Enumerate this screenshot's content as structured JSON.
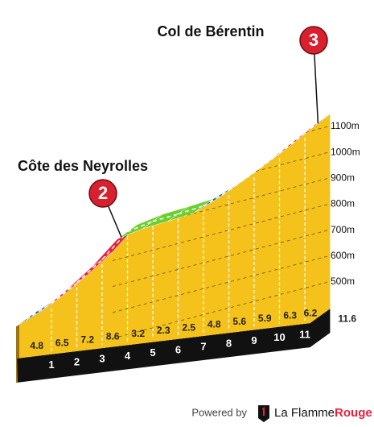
{
  "chart_data": {
    "type": "profile",
    "climbs": [
      {
        "name": "Côte des Neyrolles",
        "number": "2"
      },
      {
        "name": "Col de Bérentin",
        "number": "3"
      }
    ],
    "xticks": [
      1,
      2,
      3,
      4,
      5,
      6,
      7,
      8,
      9,
      10,
      11
    ],
    "distance_total": 11.6,
    "gradients": [
      4.8,
      6.5,
      7.2,
      8.6,
      3.2,
      2.3,
      2.5,
      4.8,
      5.6,
      5.9,
      6.3,
      6.2
    ],
    "colors": [
      "#1e6b9c",
      "#e8203a",
      "#e8203a",
      "#e8203a",
      "#6ccf2e",
      "#6ccf2e",
      "#6ccf2e",
      "#1e6b9c",
      "#1e6b9c",
      "#1e6b9c",
      "#e8203a",
      "#e8203a"
    ],
    "ylim": [
      500,
      1100
    ],
    "yticks": [
      {
        "value": 500,
        "label": "500m"
      },
      {
        "value": 600,
        "label": "600m"
      },
      {
        "value": 700,
        "label": "700m"
      },
      {
        "value": 800,
        "label": "800m"
      },
      {
        "value": 900,
        "label": "900m"
      },
      {
        "value": 1000,
        "label": "1000m"
      },
      {
        "value": 1100,
        "label": "1100m"
      }
    ]
  },
  "footer": {
    "powered": "Powered by",
    "brand_light": "La Flamme",
    "brand_bold": "Rouge"
  }
}
